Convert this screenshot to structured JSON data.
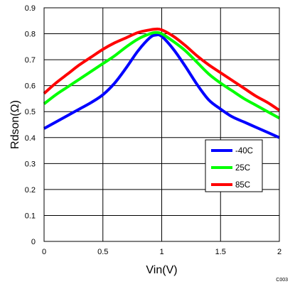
{
  "chart_data": {
    "type": "line",
    "xlabel": "Vin(V)",
    "ylabel": "Rdson(Ω)",
    "xlim": [
      0,
      2
    ],
    "ylim": [
      0,
      0.9
    ],
    "xticks": [
      "0",
      "0.5",
      "1",
      "1.5",
      "2"
    ],
    "yticks": [
      "0",
      "0.1",
      "0.2",
      "0.3",
      "0.4",
      "0.5",
      "0.6",
      "0.7",
      "0.8",
      "0.9"
    ],
    "grid": true,
    "legend_position": "lower-right",
    "footnote": "C003",
    "series": [
      {
        "name": "-40C",
        "color": "#0000ff",
        "x": [
          0,
          0.1,
          0.2,
          0.3,
          0.4,
          0.5,
          0.6,
          0.7,
          0.8,
          0.9,
          0.95,
          1.0,
          1.1,
          1.2,
          1.3,
          1.4,
          1.5,
          1.6,
          1.7,
          1.8,
          1.9,
          2.0
        ],
        "y": [
          0.435,
          0.46,
          0.485,
          0.51,
          0.535,
          0.565,
          0.61,
          0.67,
          0.735,
          0.785,
          0.795,
          0.79,
          0.74,
          0.675,
          0.605,
          0.545,
          0.51,
          0.48,
          0.46,
          0.44,
          0.42,
          0.4
        ]
      },
      {
        "name": "25C",
        "color": "#00ff00",
        "x": [
          0,
          0.1,
          0.2,
          0.3,
          0.4,
          0.5,
          0.6,
          0.7,
          0.8,
          0.9,
          0.95,
          1.0,
          1.1,
          1.2,
          1.3,
          1.4,
          1.5,
          1.6,
          1.7,
          1.8,
          1.9,
          2.0
        ],
        "y": [
          0.53,
          0.565,
          0.595,
          0.625,
          0.655,
          0.685,
          0.715,
          0.75,
          0.78,
          0.8,
          0.805,
          0.8,
          0.77,
          0.735,
          0.69,
          0.645,
          0.61,
          0.58,
          0.55,
          0.525,
          0.5,
          0.475
        ]
      },
      {
        "name": "85C",
        "color": "#ff0000",
        "x": [
          0,
          0.1,
          0.2,
          0.3,
          0.4,
          0.5,
          0.6,
          0.7,
          0.8,
          0.9,
          0.95,
          1.0,
          1.1,
          1.2,
          1.3,
          1.4,
          1.5,
          1.6,
          1.7,
          1.8,
          1.9,
          2.0
        ],
        "y": [
          0.57,
          0.61,
          0.645,
          0.68,
          0.71,
          0.74,
          0.765,
          0.785,
          0.805,
          0.815,
          0.818,
          0.815,
          0.79,
          0.755,
          0.715,
          0.68,
          0.65,
          0.62,
          0.59,
          0.56,
          0.535,
          0.505
        ]
      }
    ]
  }
}
